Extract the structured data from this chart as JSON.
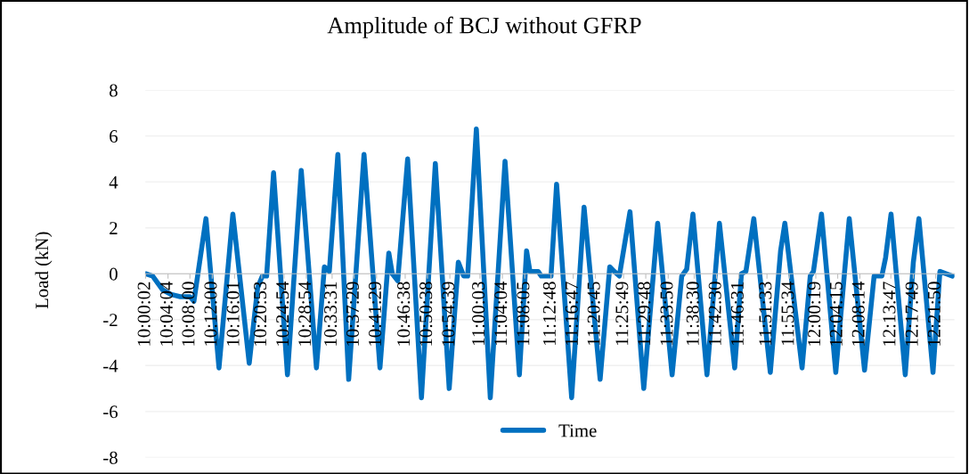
{
  "chart_data": {
    "type": "line",
    "title": "Amplitude of BCJ without GFRP",
    "ylabel": "Load (kN)",
    "x": [
      10.0012,
      10.022,
      10.0517,
      10.0763,
      10.1045,
      10.1333,
      10.1453,
      10.1813,
      10.2202,
      10.2617,
      10.3107,
      10.3358,
      10.35,
      10.3627,
      10.3835,
      10.425,
      10.4663,
      10.5117,
      10.5355,
      10.5502,
      10.5758,
      10.6082,
      10.654,
      10.7017,
      10.7282,
      10.7385,
      10.7548,
      10.7845,
      10.8258,
      10.8673,
      10.9088,
      10.936,
      10.9522,
      10.964,
      10.99,
      11.0317,
      11.0758,
      11.1187,
      11.1402,
      11.1503,
      11.1748,
      11.1842,
      11.2133,
      11.23,
      11.275,
      11.3122,
      11.3602,
      11.389,
      11.4025,
      11.4177,
      11.4495,
      11.4907,
      11.5323,
      11.5755,
      11.6043,
      11.6192,
      11.6378,
      11.6797,
      11.717,
      11.7627,
      11.7828,
      11.7963,
      11.8198,
      11.8692,
      11.9,
      11.9128,
      11.9642,
      11.9887,
      11.9982,
      12.0223,
      12.065,
      12.1053,
      12.151,
      12.1797,
      12.2028,
      12.214,
      12.2303,
      12.2728,
      12.297,
      12.3137,
      12.3558,
      12.3765,
      12.4138
    ],
    "series": [
      {
        "name": "Time",
        "color": "#0070c0",
        "values": [
          0,
          -0.1,
          -0.7,
          -0.9,
          -1.0,
          -1.0,
          -1.2,
          2.4,
          -4.1,
          2.6,
          -3.9,
          -0.6,
          -0.1,
          -0.1,
          4.4,
          -4.4,
          4.5,
          -4.1,
          0.3,
          0.1,
          5.2,
          -4.6,
          5.2,
          -4.1,
          0.9,
          0,
          -0.3,
          5.0,
          -5.4,
          4.8,
          -5.0,
          0.5,
          -0.1,
          -0.1,
          6.3,
          -5.4,
          4.9,
          -4.4,
          1.0,
          0.1,
          0.1,
          -0.1,
          -0.1,
          3.9,
          -5.4,
          2.9,
          -4.6,
          0.3,
          0.1,
          -0.1,
          2.7,
          -5.0,
          2.2,
          -4.4,
          -0.1,
          0.2,
          2.6,
          -4.4,
          2.2,
          -4.1,
          0,
          0.1,
          2.4,
          -4.3,
          1.0,
          2.2,
          -4.1,
          -0.1,
          0.1,
          2.6,
          -4.3,
          2.4,
          -4.2,
          -0.1,
          -0.1,
          0.7,
          2.6,
          -4.4,
          0.5,
          2.4,
          -4.3,
          0.1,
          -0.1
        ]
      }
    ],
    "xlim": [
      10.0,
      12.42
    ],
    "xticks": [
      {
        "value": 10.0006,
        "label": "10:00:02"
      },
      {
        "value": 10.0678,
        "label": "10:04:04"
      },
      {
        "value": 10.1333,
        "label": "10:08:00"
      },
      {
        "value": 10.2,
        "label": "10:12:00"
      },
      {
        "value": 10.2669,
        "label": "10:16:01"
      },
      {
        "value": 10.3481,
        "label": "10:20:53"
      },
      {
        "value": 10.415,
        "label": "10:24:54"
      },
      {
        "value": 10.4817,
        "label": "10:28:54"
      },
      {
        "value": 10.5586,
        "label": "10:33:31"
      },
      {
        "value": 10.6247,
        "label": "10:37:29"
      },
      {
        "value": 10.6914,
        "label": "10:41:29"
      },
      {
        "value": 10.7772,
        "label": "10:46:38"
      },
      {
        "value": 10.8439,
        "label": "10:50:38"
      },
      {
        "value": 10.9108,
        "label": "10:54:39"
      },
      {
        "value": 11.0008,
        "label": "11:00:03"
      },
      {
        "value": 11.0678,
        "label": "11:04:04"
      },
      {
        "value": 11.1347,
        "label": "11:08:05"
      },
      {
        "value": 11.2133,
        "label": "11:12:48"
      },
      {
        "value": 11.2797,
        "label": "11:16:47"
      },
      {
        "value": 11.3458,
        "label": "11:20:45"
      },
      {
        "value": 11.4303,
        "label": "11:25:49"
      },
      {
        "value": 11.4967,
        "label": "11:29:48"
      },
      {
        "value": 11.5639,
        "label": "11:33:50"
      },
      {
        "value": 11.6417,
        "label": "11:38:30"
      },
      {
        "value": 11.7083,
        "label": "11:42:30"
      },
      {
        "value": 11.7753,
        "label": "11:46:31"
      },
      {
        "value": 11.8592,
        "label": "11:51:33"
      },
      {
        "value": 11.9261,
        "label": "11:55:34"
      },
      {
        "value": 12.0053,
        "label": "12:00:19"
      },
      {
        "value": 12.0708,
        "label": "12:04:15"
      },
      {
        "value": 12.1372,
        "label": "12:08:14"
      },
      {
        "value": 12.2297,
        "label": "12:13:47"
      },
      {
        "value": 12.2969,
        "label": "12:17:49"
      },
      {
        "value": 12.3639,
        "label": "12:21:50"
      }
    ],
    "ylim": [
      -8,
      8
    ],
    "yticks": [
      -8,
      -6,
      -4,
      -2,
      0,
      2,
      4,
      6,
      8
    ],
    "grid": "y",
    "legend": "bottom",
    "marker": "none",
    "line_style": "solid"
  }
}
